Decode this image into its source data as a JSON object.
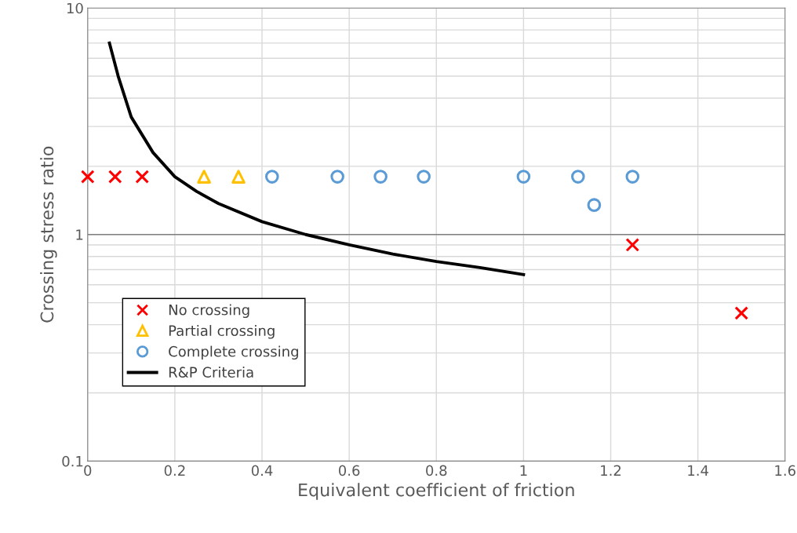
{
  "chart_data": {
    "type": "scatter",
    "xlabel": "Equivalent coefficient of friction",
    "ylabel": "Crossing stress ratio",
    "log": "y",
    "grid": true,
    "ref_lines": [
      {
        "axis": "y",
        "value": 1,
        "color": "#808080",
        "line_style": "solid"
      }
    ],
    "legend": "bottom left",
    "xlim": [
      0,
      1.6
    ],
    "xticks": [
      0,
      0.2,
      0.4,
      0.6,
      0.8,
      1,
      1.2,
      1.4,
      1.6
    ],
    "ylim": [
      0.1,
      10
    ],
    "yticks": [
      0.1,
      {
        "value": 0.2,
        "label": null
      },
      {
        "value": 0.3,
        "label": null
      },
      {
        "value": 0.4,
        "label": null
      },
      {
        "value": 0.5,
        "label": null
      },
      {
        "value": 0.6,
        "label": null
      },
      {
        "value": 0.7,
        "label": null
      },
      {
        "value": 0.8,
        "label": null
      },
      {
        "value": 0.9,
        "label": null
      },
      1,
      {
        "value": 2,
        "label": null
      },
      {
        "value": 3,
        "label": null
      },
      {
        "value": 4,
        "label": null
      },
      {
        "value": 5,
        "label": null
      },
      {
        "value": 6,
        "label": null
      },
      {
        "value": 7,
        "label": null
      },
      {
        "value": 8,
        "label": null
      },
      {
        "value": 9,
        "label": null
      },
      10
    ],
    "series": [
      {
        "name": "No crossing",
        "marker": "cross",
        "color": "#ff0000",
        "x": [
          0,
          0.063,
          0.125,
          1.25,
          1.5
        ],
        "values": [
          1.8,
          1.8,
          1.8,
          0.9,
          0.45
        ]
      },
      {
        "name": "Partial crossing",
        "marker": "triangle",
        "color": "#ffc000",
        "x": [
          0.267,
          0.346
        ],
        "values": [
          1.8,
          1.8
        ]
      },
      {
        "name": "Complete crossing",
        "marker": "circle",
        "color": "#5b9bd5",
        "x": [
          0.423,
          0.573,
          0.672,
          0.771,
          1.0,
          1.125,
          1.162,
          1.25
        ],
        "values": [
          1.8,
          1.8,
          1.8,
          1.8,
          1.8,
          1.8,
          1.35,
          1.8
        ]
      },
      {
        "name": "R&P Criteria",
        "type": "line",
        "marker": "none",
        "line_style": "solid",
        "color": "#000000",
        "x": [
          0.05,
          0.07,
          0.1,
          0.15,
          0.2,
          0.25,
          0.3,
          0.4,
          0.5,
          0.6,
          0.7,
          0.8,
          0.9,
          1.0
        ],
        "values": [
          7.0,
          5.0,
          3.3,
          2.3,
          1.8,
          1.55,
          1.37,
          1.14,
          1.0,
          0.9,
          0.82,
          0.76,
          0.715,
          0.665
        ]
      }
    ]
  }
}
